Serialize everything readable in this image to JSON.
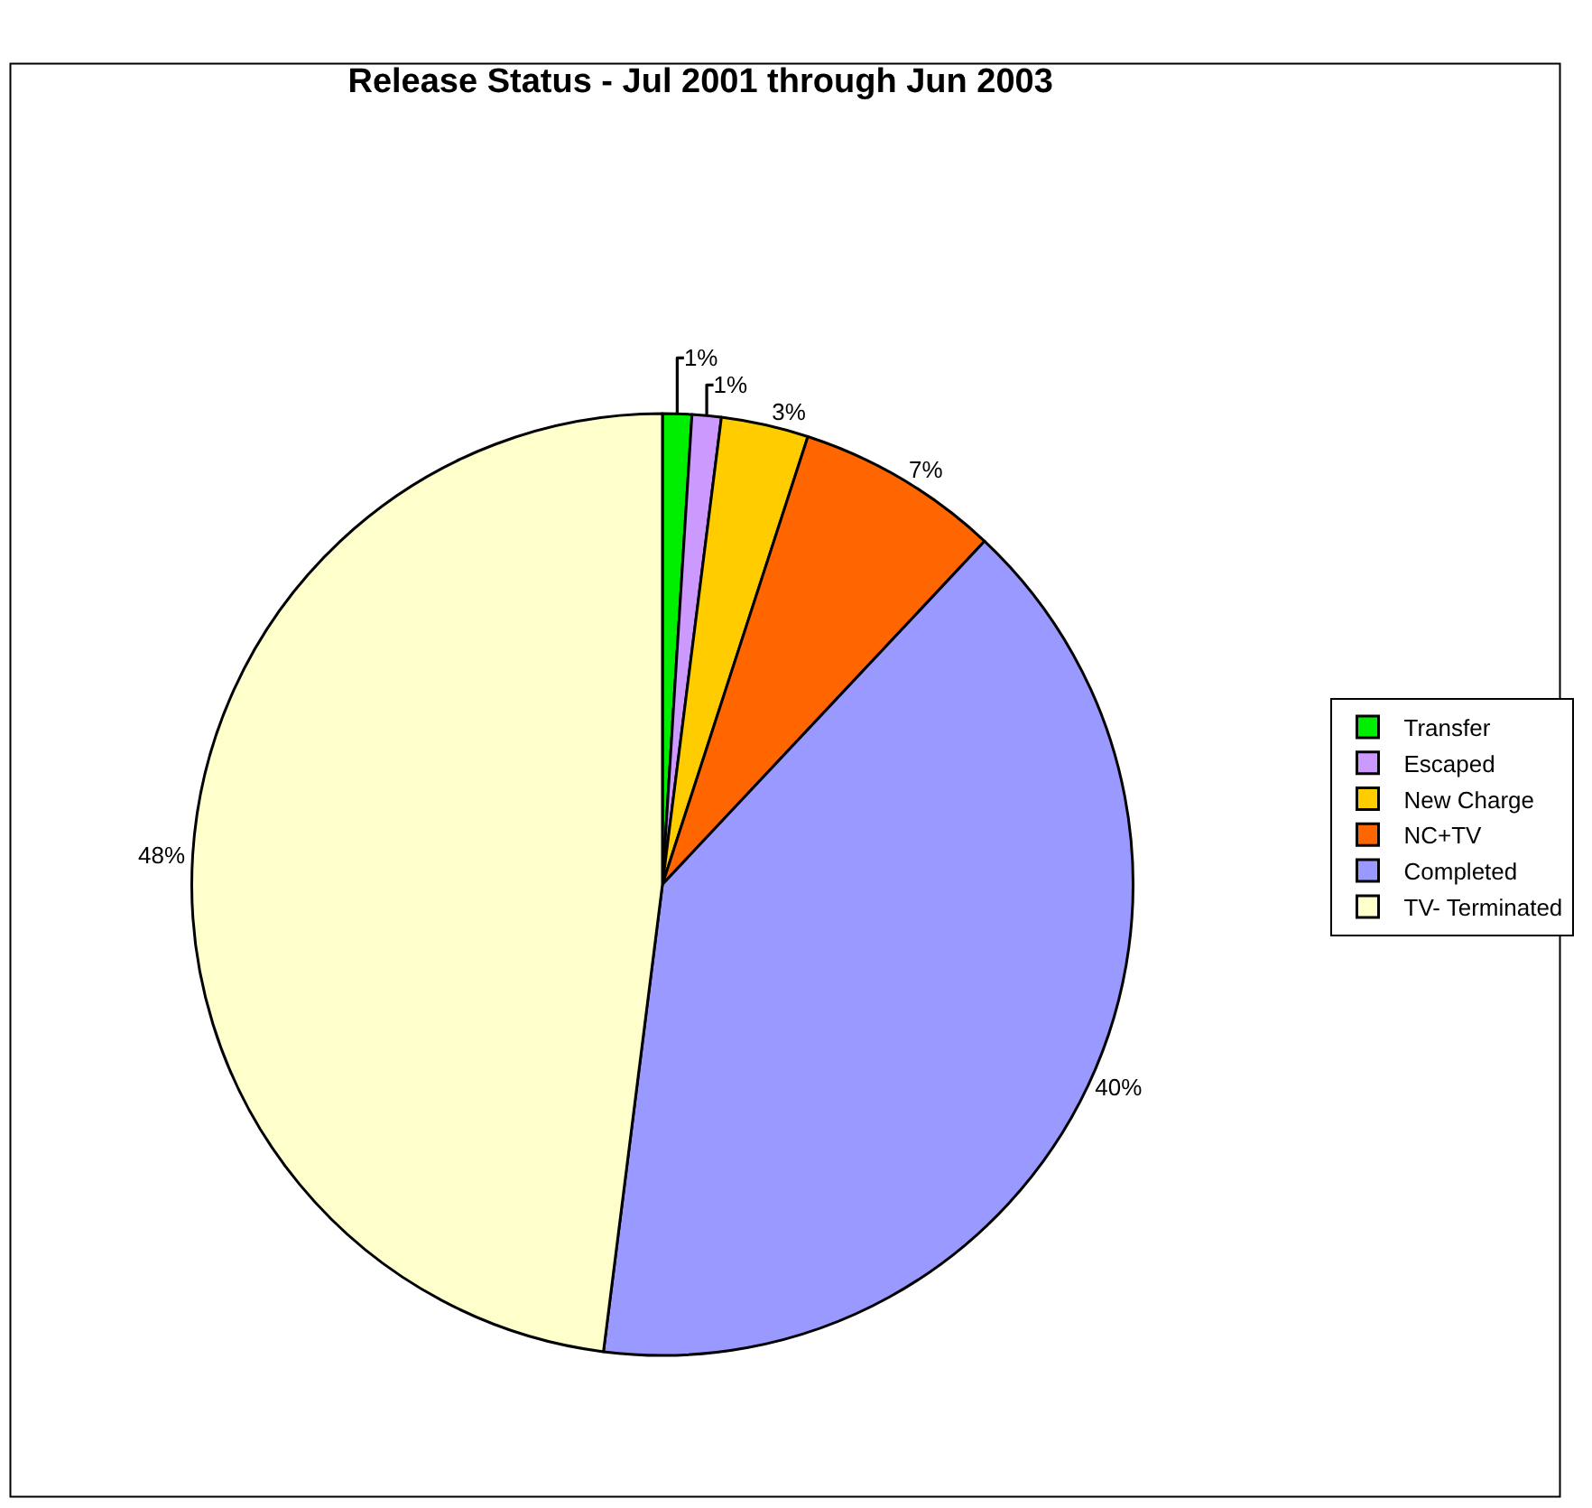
{
  "chart_data": {
    "type": "pie",
    "title": "Release Status - Jul 2001 through Jun 2003",
    "categories": [
      "Transfer",
      "Escaped",
      "New Charge",
      "NC+TV",
      "Completed",
      "TV- Terminated"
    ],
    "values": [
      1,
      1,
      3,
      7,
      40,
      48
    ],
    "value_labels": [
      "1%",
      "1%",
      "3%",
      "7%",
      "40%",
      "48%"
    ],
    "colors": [
      "#00ee00",
      "#cc99ff",
      "#ffcc00",
      "#ff6600",
      "#9999ff",
      "#ffffcc"
    ],
    "legend": "right"
  }
}
